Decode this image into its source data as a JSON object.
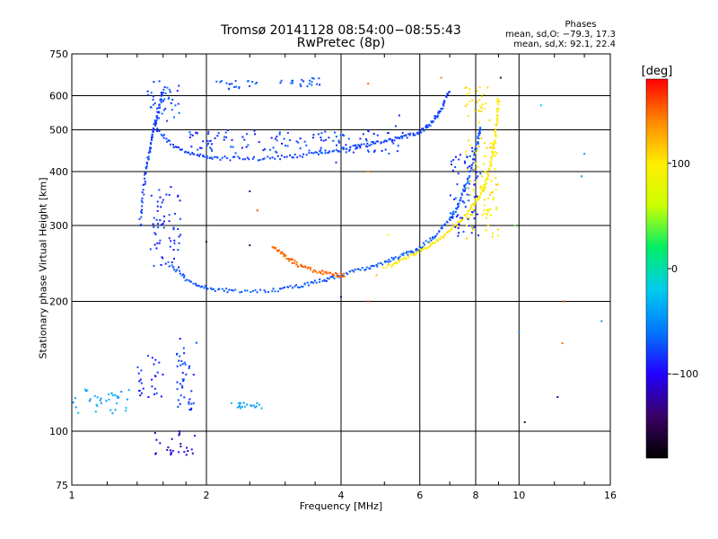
{
  "figure": {
    "title_line1": "Tromsø 20141128 08:54:00−08:55:43",
    "title_line2": "RwPretec (8p)",
    "phase_block": {
      "title": "Phases",
      "line1": "mean, sd,O: −79.3, 17.3",
      "line2": "mean, sd,X:  92.1, 22.4"
    }
  },
  "chart_data": {
    "type": "scatter",
    "xlabel": "Frequency [MHz]",
    "ylabel": "Stationary phase Virtual Height [km]",
    "x_scale": "log",
    "y_scale": "log",
    "xlim": [
      1,
      16
    ],
    "ylim": [
      75,
      750
    ],
    "x_ticks": [
      1,
      2,
      4,
      6,
      8,
      10,
      16
    ],
    "y_ticks": [
      75,
      100,
      200,
      300,
      400,
      500,
      600,
      750
    ],
    "grid": true,
    "colorbar": {
      "label": "[deg]",
      "range": [
        -180,
        180
      ],
      "ticks": [
        {
          "value": 100,
          "label": "100"
        },
        {
          "value": 0,
          "label": "0"
        },
        {
          "value": -100,
          "label": "−100"
        }
      ],
      "colormap": [
        "#000000",
        "#3a0066",
        "#2200ff",
        "#0077ff",
        "#00ccee",
        "#00ee66",
        "#ccff00",
        "#ffee00",
        "#ff8800",
        "#ff0000"
      ]
    },
    "series": [
      {
        "kind": "curve",
        "phase": -70,
        "points": [
          [
            1.65,
            245
          ],
          [
            1.8,
            225
          ],
          [
            2.0,
            215
          ],
          [
            2.3,
            211
          ],
          [
            2.8,
            212
          ],
          [
            3.2,
            217
          ],
          [
            3.6,
            223
          ],
          [
            4.0,
            230
          ],
          [
            4.5,
            238
          ],
          [
            5.0,
            246
          ],
          [
            5.5,
            256
          ],
          [
            6.0,
            266
          ],
          [
            6.5,
            284
          ],
          [
            7.0,
            310
          ],
          [
            7.3,
            335
          ],
          [
            7.6,
            370
          ],
          [
            7.9,
            420
          ],
          [
            8.1,
            470
          ],
          [
            8.2,
            510
          ]
        ]
      },
      {
        "kind": "curve",
        "phase": -78,
        "points": [
          [
            1.55,
            500
          ],
          [
            1.7,
            455
          ],
          [
            1.9,
            438
          ],
          [
            2.1,
            430
          ],
          [
            2.5,
            428
          ],
          [
            3.0,
            432
          ],
          [
            3.5,
            440
          ],
          [
            4.0,
            450
          ],
          [
            4.5,
            460
          ],
          [
            5.0,
            470
          ],
          [
            5.5,
            480
          ],
          [
            6.0,
            492
          ],
          [
            6.4,
            520
          ],
          [
            6.7,
            560
          ],
          [
            7.0,
            620
          ]
        ]
      },
      {
        "kind": "curve",
        "phase": 150,
        "points": [
          [
            2.8,
            270
          ],
          [
            3.0,
            255
          ],
          [
            3.2,
            243
          ],
          [
            3.5,
            235
          ],
          [
            3.8,
            231
          ],
          [
            4.1,
            230
          ]
        ]
      },
      {
        "kind": "curve",
        "phase": 100,
        "points": [
          [
            5.0,
            240
          ],
          [
            5.5,
            250
          ],
          [
            6.0,
            262
          ],
          [
            6.5,
            275
          ],
          [
            7.0,
            290
          ],
          [
            7.5,
            310
          ],
          [
            7.9,
            335
          ],
          [
            8.3,
            360
          ],
          [
            8.5,
            390
          ],
          [
            8.7,
            430
          ],
          [
            8.85,
            480
          ],
          [
            8.95,
            540
          ],
          [
            9.0,
            600
          ]
        ]
      },
      {
        "kind": "curve",
        "phase": -80,
        "points": [
          [
            1.42,
            300
          ],
          [
            1.45,
            370
          ],
          [
            1.48,
            430
          ],
          [
            1.51,
            480
          ],
          [
            1.54,
            520
          ],
          [
            1.57,
            570
          ],
          [
            1.6,
            620
          ]
        ]
      },
      {
        "kind": "cloud",
        "phase": -85,
        "bounds": {
          "x": [
            1.5,
            1.75
          ],
          "y": [
            240,
            370
          ]
        }
      },
      {
        "kind": "cloud",
        "phase": -75,
        "bounds": {
          "x": [
            1.45,
            1.75
          ],
          "y": [
            520,
            650
          ]
        }
      },
      {
        "kind": "cloud",
        "phase": -80,
        "bounds": {
          "x": [
            1.8,
            5.5
          ],
          "y": [
            440,
            500
          ]
        }
      },
      {
        "kind": "cloud",
        "phase": -70,
        "bounds": {
          "x": [
            2.1,
            2.6
          ],
          "y": [
            620,
            650
          ]
        }
      },
      {
        "kind": "cloud",
        "phase": -75,
        "bounds": {
          "x": [
            2.9,
            3.6
          ],
          "y": [
            630,
            660
          ]
        }
      },
      {
        "kind": "cloud",
        "phase": -85,
        "bounds": {
          "x": [
            7.0,
            8.2
          ],
          "y": [
            280,
            460
          ]
        }
      },
      {
        "kind": "cloud",
        "phase": 100,
        "bounds": {
          "x": [
            7.6,
            9.0
          ],
          "y": [
            280,
            480
          ]
        }
      },
      {
        "kind": "cloud",
        "phase": 100,
        "bounds": {
          "x": [
            7.4,
            8.6
          ],
          "y": [
            520,
            640
          ]
        }
      },
      {
        "kind": "cloud",
        "phase": -40,
        "bounds": {
          "x": [
            1.0,
            1.35
          ],
          "y": [
            110,
            125
          ]
        }
      },
      {
        "kind": "cloud",
        "phase": -90,
        "bounds": {
          "x": [
            1.4,
            1.6
          ],
          "y": [
            120,
            150
          ]
        }
      },
      {
        "kind": "cloud",
        "phase": -80,
        "bounds": {
          "x": [
            1.7,
            1.9
          ],
          "y": [
            110,
            165
          ]
        }
      },
      {
        "kind": "cloud",
        "phase": -40,
        "bounds": {
          "x": [
            2.2,
            2.7
          ],
          "y": [
            113,
            117
          ]
        }
      },
      {
        "kind": "cloud",
        "phase": -110,
        "bounds": {
          "x": [
            1.5,
            1.9
          ],
          "y": [
            88,
            100
          ]
        }
      }
    ],
    "scatter_points": [
      [
        5.4,
        540,
        -90
      ],
      [
        4.6,
        640,
        150
      ],
      [
        5.3,
        510,
        -80
      ],
      [
        6.7,
        660,
        140
      ],
      [
        9.1,
        660,
        -150
      ],
      [
        12.5,
        160,
        150
      ],
      [
        15.3,
        180,
        -40
      ],
      [
        12.2,
        120,
        -120
      ],
      [
        10.3,
        105,
        -150
      ],
      [
        9.8,
        300,
        40
      ],
      [
        10.0,
        170,
        -60
      ],
      [
        11.2,
        570,
        -20
      ],
      [
        14.0,
        440,
        -40
      ],
      [
        13.8,
        390,
        -40
      ],
      [
        12.6,
        200,
        160
      ],
      [
        4.0,
        205,
        -120
      ],
      [
        4.6,
        200,
        160
      ],
      [
        2.6,
        325,
        160
      ],
      [
        4.8,
        230,
        120
      ],
      [
        5.1,
        285,
        100
      ],
      [
        4.6,
        400,
        140
      ],
      [
        3.9,
        420,
        -80
      ],
      [
        2.5,
        360,
        -120
      ],
      [
        2.0,
        275,
        -150
      ],
      [
        2.5,
        270,
        -140
      ]
    ]
  }
}
